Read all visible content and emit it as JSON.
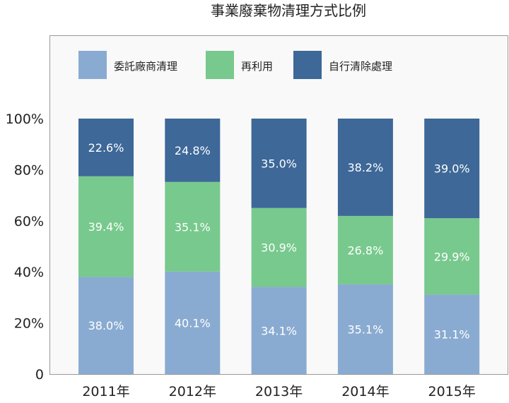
{
  "chart_data": {
    "type": "bar",
    "stacked": true,
    "title": "事業廢棄物清理方式比例",
    "categories": [
      "2011年",
      "2012年",
      "2013年",
      "2014年",
      "2015年"
    ],
    "series": [
      {
        "name": "委託廠商清理",
        "color": "#8aabd1",
        "values": [
          38.0,
          40.1,
          34.1,
          35.1,
          31.1
        ],
        "labels": [
          "38.0%",
          "40.1%",
          "34.1%",
          "35.1%",
          "31.1%"
        ]
      },
      {
        "name": "再利用",
        "color": "#78c98d",
        "values": [
          39.4,
          35.1,
          30.9,
          26.8,
          29.9
        ],
        "labels": [
          "39.4%",
          "35.1%",
          "30.9%",
          "26.8%",
          "29.9%"
        ]
      },
      {
        "name": "自行清除處理",
        "color": "#3d6898",
        "values": [
          22.6,
          24.8,
          35.0,
          38.2,
          39.0
        ],
        "labels": [
          "22.6%",
          "24.8%",
          "35.0%",
          "38.2%",
          "39.0%"
        ]
      }
    ],
    "yticks": [
      "0",
      "20%",
      "40%",
      "60%",
      "80%",
      "100%"
    ],
    "ylim": [
      0,
      100
    ],
    "grid": false,
    "legend": "top-left inside"
  }
}
